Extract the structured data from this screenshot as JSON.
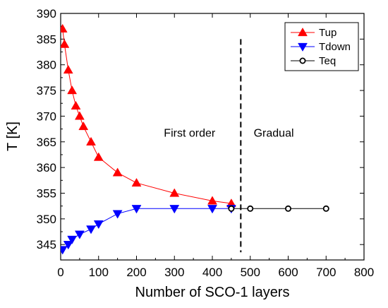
{
  "chart_data": {
    "type": "line",
    "title": "",
    "xlabel": "Number of SCO-1 layers",
    "ylabel": "T [K]",
    "xlim": [
      0,
      800
    ],
    "ylim": [
      342,
      390
    ],
    "xticks": [
      0,
      100,
      200,
      300,
      400,
      500,
      600,
      700,
      800
    ],
    "yticks": [
      345,
      350,
      355,
      360,
      365,
      370,
      375,
      380,
      385,
      390
    ],
    "grid": false,
    "legend_position": "top-right",
    "series": [
      {
        "name": "Tup",
        "color": "#ff0000",
        "marker": "triangle-up",
        "x": [
          5,
          10,
          20,
          30,
          40,
          50,
          60,
          80,
          100,
          150,
          200,
          300,
          400,
          450
        ],
        "y": [
          387,
          384,
          379,
          375,
          372,
          370,
          368,
          365,
          362,
          359,
          357,
          355,
          353.5,
          353
        ]
      },
      {
        "name": "Tdown",
        "color": "#0000ff",
        "marker": "triangle-down",
        "x": [
          5,
          20,
          30,
          50,
          80,
          100,
          150,
          200,
          300,
          400,
          450
        ],
        "y": [
          344,
          345,
          346,
          347,
          348,
          349,
          351,
          352,
          352,
          352,
          352
        ]
      },
      {
        "name": "Teq",
        "color": "#000000",
        "marker": "circle-open",
        "x": [
          450,
          500,
          600,
          700
        ],
        "y": [
          352,
          352,
          352,
          352
        ]
      }
    ],
    "annotations": [
      {
        "text": "First order",
        "x": 340,
        "y": 366
      },
      {
        "text": "Gradual",
        "x": 562,
        "y": 366
      }
    ],
    "vline": {
      "x": 475,
      "style": "dashed"
    }
  }
}
